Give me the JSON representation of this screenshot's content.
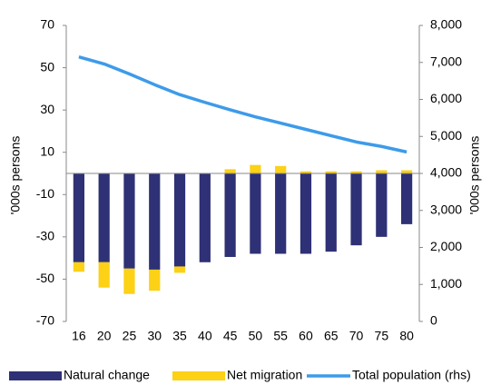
{
  "chart_data": {
    "type": "bar-line",
    "y_label": "'000s persons",
    "y2_label": "'000s persons",
    "categories": [
      "16",
      "20",
      "25",
      "30",
      "35",
      "40",
      "45",
      "50",
      "55",
      "60",
      "65",
      "70",
      "75",
      "80"
    ],
    "series": [
      {
        "name": "Natural change",
        "type": "bar",
        "color": "#2e3175",
        "values": [
          -42,
          -42,
          -45,
          -45.5,
          -44,
          -42,
          -39.5,
          -38,
          -38,
          -38,
          -37,
          -34,
          -30,
          -24
        ]
      },
      {
        "name": "Net migration",
        "type": "bar",
        "color": "#fcd116",
        "values": [
          -4.5,
          -12,
          -12,
          -10,
          -3,
          0,
          2,
          4,
          3.5,
          1,
          1,
          1,
          1.5,
          1.5
        ]
      },
      {
        "name": "Total population (rhs)",
        "type": "line",
        "axis": "y2",
        "color": "#3d9be9",
        "values": [
          7150,
          6960,
          6690,
          6400,
          6130,
          5920,
          5720,
          5530,
          5360,
          5190,
          5020,
          4850,
          4730,
          4580
        ]
      }
    ],
    "ylim": [
      -70,
      70
    ],
    "yticks": [
      -70,
      -50,
      -30,
      -10,
      10,
      30,
      50,
      70
    ],
    "y2lim": [
      0,
      8000
    ],
    "y2ticks": [
      0,
      {
        "value": 1000,
        "label": "1,000"
      },
      {
        "value": 2000,
        "label": "2,000"
      },
      {
        "value": 3000,
        "label": "3,000"
      },
      {
        "value": 4000,
        "label": "4,000"
      },
      {
        "value": 5000,
        "label": "5,000"
      },
      {
        "value": 6000,
        "label": "6,000"
      },
      {
        "value": 7000,
        "label": "7,000"
      },
      {
        "value": 8000,
        "label": "8,000"
      }
    ]
  }
}
